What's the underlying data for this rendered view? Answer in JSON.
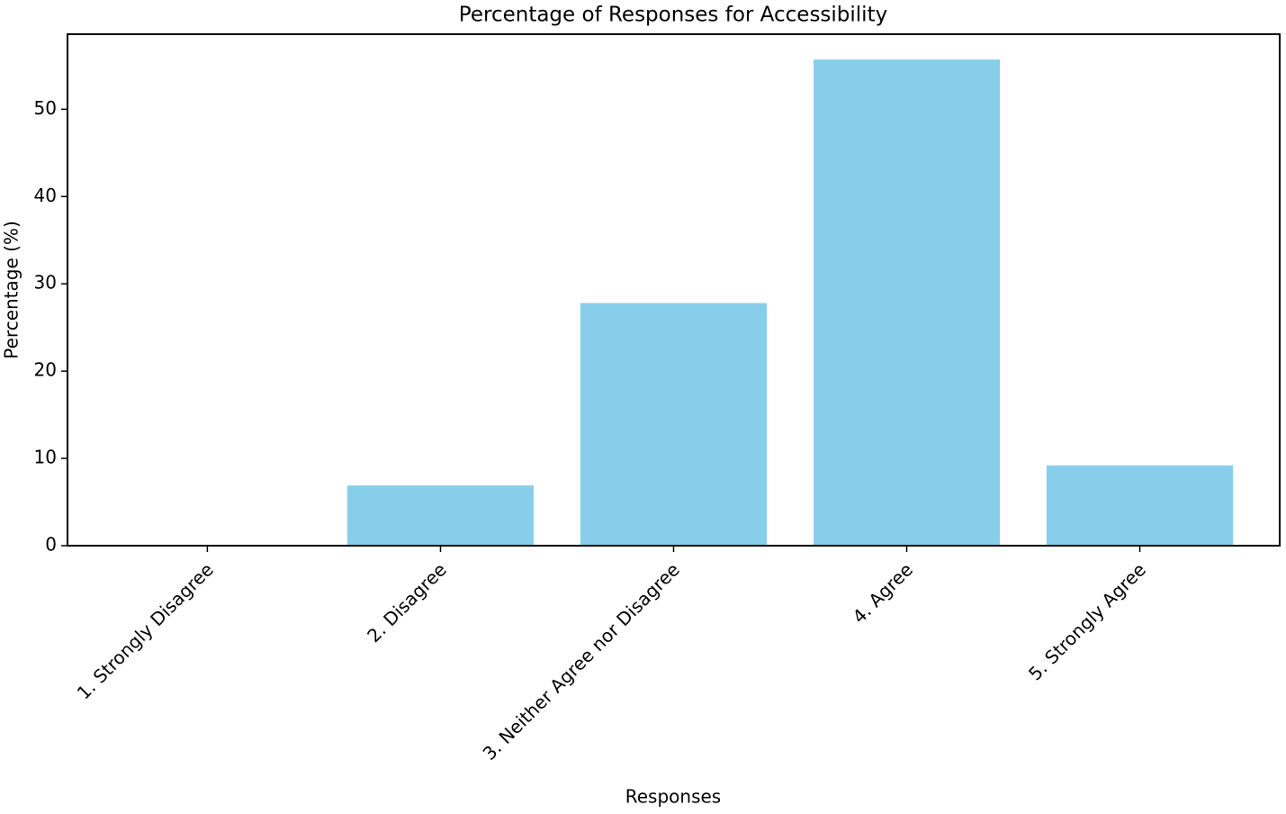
{
  "chart_data": {
    "type": "bar",
    "title": "Percentage of Responses for Accessibility",
    "x_label": "Responses",
    "y_label": "Percentage (%)",
    "categories": [
      "1. Strongly Disagree",
      "2. Disagree",
      "3. Neither Agree nor Disagree",
      "4. Agree",
      "5. Strongly Agree"
    ],
    "values": [
      0,
      6.9,
      27.8,
      55.7,
      9.2
    ],
    "color": "#87ceeb",
    "ylim": [
      0,
      58.6
    ],
    "yticks": [
      0,
      10,
      20,
      30,
      40,
      50
    ],
    "grid": false
  }
}
